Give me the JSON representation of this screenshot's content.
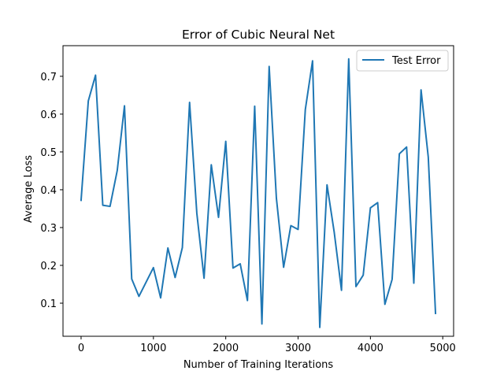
{
  "chart_data": {
    "type": "line",
    "title": "Error of Cubic Neural Net",
    "xlabel": "Number of Training Iterations",
    "ylabel": "Average Loss",
    "xlim": [
      -250,
      5150
    ],
    "ylim": [
      0.0125,
      0.781
    ],
    "x_ticks": [
      0,
      1000,
      2000,
      3000,
      4000,
      5000
    ],
    "y_ticks": [
      0.1,
      0.2,
      0.3,
      0.4,
      0.5,
      0.6,
      0.7
    ],
    "x_tick_labels": [
      "0",
      "1000",
      "2000",
      "3000",
      "4000",
      "5000"
    ],
    "y_tick_labels": [
      "0.1",
      "0.2",
      "0.3",
      "0.4",
      "0.5",
      "0.6",
      "0.7"
    ],
    "grid": false,
    "legend_position": "top-right",
    "series": [
      {
        "name": "Test Error",
        "color": "#1f77b4",
        "x": [
          0,
          100,
          200,
          300,
          400,
          500,
          600,
          700,
          800,
          900,
          1000,
          1100,
          1200,
          1300,
          1400,
          1500,
          1600,
          1700,
          1800,
          1900,
          2000,
          2100,
          2200,
          2300,
          2400,
          2500,
          2600,
          2700,
          2800,
          2900,
          3000,
          3100,
          3200,
          3300,
          3400,
          3500,
          3600,
          3700,
          3800,
          3900,
          4000,
          4100,
          4200,
          4300,
          4400,
          4500,
          4600,
          4700,
          4800,
          4900
        ],
        "y": [
          0.372,
          0.635,
          0.703,
          0.359,
          0.356,
          0.451,
          0.622,
          0.164,
          0.118,
          0.156,
          0.194,
          0.114,
          0.246,
          0.168,
          0.247,
          0.631,
          0.338,
          0.166,
          0.466,
          0.327,
          0.528,
          0.193,
          0.204,
          0.107,
          0.621,
          0.045,
          0.726,
          0.378,
          0.195,
          0.305,
          0.295,
          0.612,
          0.741,
          0.036,
          0.413,
          0.287,
          0.134,
          0.746,
          0.144,
          0.174,
          0.352,
          0.366,
          0.097,
          0.163,
          0.495,
          0.513,
          0.153,
          0.664,
          0.486,
          0.073
        ]
      }
    ]
  }
}
